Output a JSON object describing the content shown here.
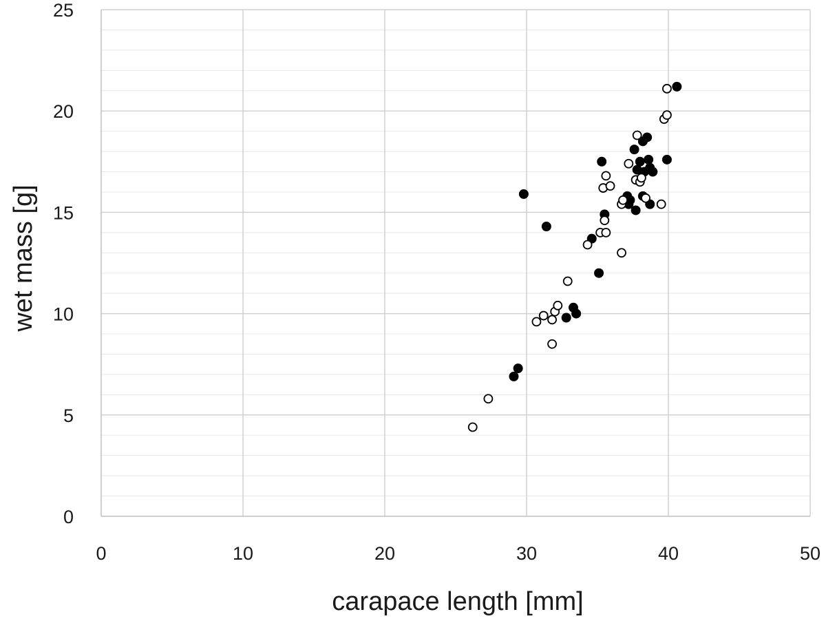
{
  "chart_data": {
    "type": "scatter",
    "title": "",
    "xlabel": "carapace length [mm]",
    "ylabel": "wet mass [g]",
    "xlim": [
      0,
      50
    ],
    "ylim": [
      0,
      25
    ],
    "x_ticks": [
      0,
      10,
      20,
      30,
      40,
      50
    ],
    "y_ticks": [
      0,
      5,
      10,
      15,
      20,
      25
    ],
    "x_tick_labels": [
      "0",
      "10",
      "20",
      "30",
      "40",
      "50"
    ],
    "y_tick_labels": [
      "0",
      "5",
      "10",
      "15",
      "20",
      "25"
    ],
    "major_grid": true,
    "minor_y_grid_step": 1,
    "legend": "none",
    "colors": {
      "filled": "#000000",
      "open_fill": "#ffffff",
      "stroke": "#000000",
      "grid_major": "#d0d0d0",
      "grid_minor": "#e8e8e8",
      "axis": "#bfbfbf"
    },
    "series": [
      {
        "name": "filled",
        "marker": "filled-circle",
        "points": [
          [
            29.8,
            15.9
          ],
          [
            31.4,
            14.3
          ],
          [
            29.4,
            7.3
          ],
          [
            29.1,
            6.9
          ],
          [
            32.8,
            9.8
          ],
          [
            33.3,
            10.3
          ],
          [
            33.5,
            10.0
          ],
          [
            35.1,
            12.0
          ],
          [
            34.6,
            13.7
          ],
          [
            35.5,
            14.9
          ],
          [
            35.3,
            17.5
          ],
          [
            37.1,
            15.8
          ],
          [
            37.2,
            15.4
          ],
          [
            37.3,
            15.6
          ],
          [
            37.7,
            15.1
          ],
          [
            37.6,
            18.1
          ],
          [
            37.8,
            17.1
          ],
          [
            38.0,
            17.5
          ],
          [
            38.2,
            18.5
          ],
          [
            38.5,
            18.7
          ],
          [
            38.6,
            17.6
          ],
          [
            38.7,
            17.2
          ],
          [
            38.3,
            17.0
          ],
          [
            38.9,
            17.0
          ],
          [
            38.2,
            15.8
          ],
          [
            38.7,
            15.4
          ],
          [
            39.9,
            17.6
          ],
          [
            40.6,
            21.2
          ]
        ]
      },
      {
        "name": "open",
        "marker": "open-circle",
        "points": [
          [
            26.2,
            4.4
          ],
          [
            27.3,
            5.8
          ],
          [
            31.8,
            8.5
          ],
          [
            30.7,
            9.6
          ],
          [
            31.2,
            9.9
          ],
          [
            31.8,
            9.7
          ],
          [
            32.0,
            10.1
          ],
          [
            32.2,
            10.4
          ],
          [
            32.9,
            11.6
          ],
          [
            34.3,
            13.4
          ],
          [
            35.2,
            14.0
          ],
          [
            35.6,
            14.0
          ],
          [
            35.5,
            14.6
          ],
          [
            35.4,
            16.2
          ],
          [
            35.6,
            16.8
          ],
          [
            35.9,
            16.3
          ],
          [
            36.7,
            13.0
          ],
          [
            36.7,
            15.4
          ],
          [
            36.8,
            15.6
          ],
          [
            37.2,
            17.4
          ],
          [
            37.8,
            18.8
          ],
          [
            37.7,
            16.6
          ],
          [
            38.0,
            16.5
          ],
          [
            38.1,
            16.7
          ],
          [
            38.4,
            15.7
          ],
          [
            39.5,
            15.4
          ],
          [
            39.7,
            19.6
          ],
          [
            39.9,
            19.8
          ],
          [
            39.9,
            21.1
          ]
        ]
      }
    ]
  }
}
